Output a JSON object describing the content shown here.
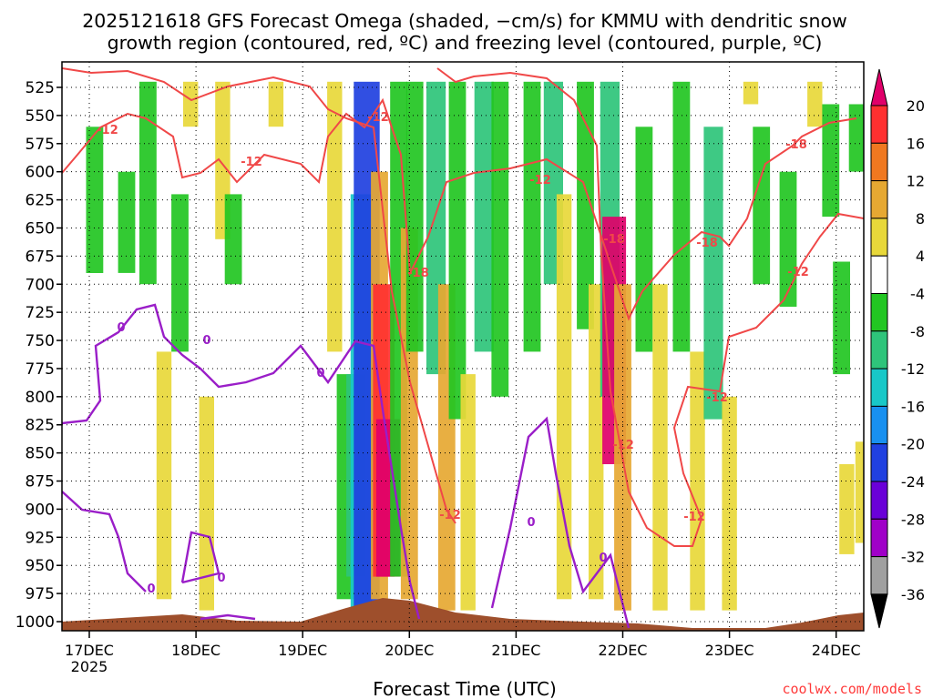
{
  "chart_data": {
    "type": "heatmap",
    "title_line1": "2025121618 GFS Forecast Omega (shaded, −cm/s) for KMMU with dendritic snow",
    "title_line2": "growth region (contoured, red, ºC) and freezing level (contoured, purple, ºC)",
    "xlabel": "Forecast Time (UTC)",
    "credit": "coolwx.com/models",
    "year_label": "2025",
    "x_ticks": [
      "17DEC",
      "18DEC",
      "19DEC",
      "20DEC",
      "21DEC",
      "22DEC",
      "23DEC",
      "24DEC"
    ],
    "y_ticks": [
      525,
      550,
      575,
      600,
      625,
      650,
      675,
      700,
      725,
      750,
      775,
      800,
      825,
      850,
      875,
      900,
      925,
      950,
      975,
      1000
    ],
    "colorbar": {
      "labels": [
        20,
        16,
        12,
        8,
        4,
        -4,
        -8,
        -12,
        -16,
        -20,
        -24,
        -28,
        -32,
        -36
      ],
      "colors": [
        "#e0006a",
        "#ff3030",
        "#f07820",
        "#e6a832",
        "#e8d83a",
        "#ffffff",
        "#22c622",
        "#2ec47a",
        "#18c8c8",
        "#1890f0",
        "#2040e0",
        "#6a00d8",
        "#a000c8",
        "#a0a0a0",
        "#000000"
      ]
    },
    "omega_patches": [
      {
        "t": 0.05,
        "p": [
          560,
          690
        ],
        "v": -8
      },
      {
        "t": 0.35,
        "p": [
          600,
          690
        ],
        "v": -8
      },
      {
        "t": 0.55,
        "p": [
          520,
          700
        ],
        "v": -8
      },
      {
        "t": 0.85,
        "p": [
          620,
          760
        ],
        "v": -8
      },
      {
        "t": 0.95,
        "p": [
          520,
          560
        ],
        "v": 4
      },
      {
        "t": 0.7,
        "p": [
          760,
          980
        ],
        "v": 4
      },
      {
        "t": 1.25,
        "p": [
          520,
          660
        ],
        "v": 4
      },
      {
        "t": 1.35,
        "p": [
          620,
          700
        ],
        "v": -8
      },
      {
        "t": 1.75,
        "p": [
          520,
          560
        ],
        "v": 4
      },
      {
        "t": 1.1,
        "p": [
          800,
          990
        ],
        "v": 4
      },
      {
        "t": 2.3,
        "p": [
          520,
          760
        ],
        "v": 4
      },
      {
        "t": 2.4,
        "p": [
          780,
          980
        ],
        "v": -8
      },
      {
        "t": 2.5,
        "p": [
          780,
          960
        ],
        "v": -12
      },
      {
        "t": 2.55,
        "p": [
          620,
          990
        ],
        "v": -16
      },
      {
        "t": 2.6,
        "p": [
          520,
          990
        ],
        "v": -24
      },
      {
        "t": 2.72,
        "p": [
          600,
          980
        ],
        "v": 8
      },
      {
        "t": 2.76,
        "p": [
          700,
          960
        ],
        "v": 16
      },
      {
        "t": 2.8,
        "p": [
          820,
          960
        ],
        "v": 20
      },
      {
        "t": 2.9,
        "p": [
          520,
          960
        ],
        "v": -8
      },
      {
        "t": 3.0,
        "p": [
          650,
          980
        ],
        "v": 8
      },
      {
        "t": 3.05,
        "p": [
          520,
          760
        ],
        "v": -8
      },
      {
        "t": 3.25,
        "p": [
          520,
          780
        ],
        "v": -12
      },
      {
        "t": 3.35,
        "p": [
          700,
          990
        ],
        "v": 8
      },
      {
        "t": 3.45,
        "p": [
          520,
          820
        ],
        "v": -8
      },
      {
        "t": 3.55,
        "p": [
          780,
          990
        ],
        "v": 4
      },
      {
        "t": 3.7,
        "p": [
          520,
          760
        ],
        "v": -12
      },
      {
        "t": 3.85,
        "p": [
          520,
          800
        ],
        "v": -8
      },
      {
        "t": 4.15,
        "p": [
          520,
          760
        ],
        "v": -8
      },
      {
        "t": 4.35,
        "p": [
          520,
          700
        ],
        "v": -12
      },
      {
        "t": 4.45,
        "p": [
          620,
          980
        ],
        "v": 4
      },
      {
        "t": 4.65,
        "p": [
          520,
          740
        ],
        "v": -8
      },
      {
        "t": 4.75,
        "p": [
          700,
          980
        ],
        "v": 4
      },
      {
        "t": 4.88,
        "p": [
          520,
          800
        ],
        "v": -12
      },
      {
        "t": 4.92,
        "p": [
          640,
          860
        ],
        "v": 20
      },
      {
        "t": 5.0,
        "p": [
          700,
          990
        ],
        "v": 8
      },
      {
        "t": 5.2,
        "p": [
          560,
          760
        ],
        "v": -8
      },
      {
        "t": 5.35,
        "p": [
          700,
          990
        ],
        "v": 4
      },
      {
        "t": 5.55,
        "p": [
          520,
          760
        ],
        "v": -8
      },
      {
        "t": 5.7,
        "p": [
          760,
          990
        ],
        "v": 4
      },
      {
        "t": 5.85,
        "p": [
          560,
          820
        ],
        "v": -12
      },
      {
        "t": 6.0,
        "p": [
          800,
          990
        ],
        "v": 4
      },
      {
        "t": 6.2,
        "p": [
          520,
          540
        ],
        "v": 4
      },
      {
        "t": 6.3,
        "p": [
          560,
          700
        ],
        "v": -8
      },
      {
        "t": 6.55,
        "p": [
          600,
          720
        ],
        "v": -8
      },
      {
        "t": 6.8,
        "p": [
          520,
          560
        ],
        "v": 4
      },
      {
        "t": 6.95,
        "p": [
          540,
          640
        ],
        "v": -8
      },
      {
        "t": 7.05,
        "p": [
          680,
          780
        ],
        "v": -8
      },
      {
        "t": 7.2,
        "p": [
          540,
          600
        ],
        "v": -8
      },
      {
        "t": 7.1,
        "p": [
          860,
          940
        ],
        "v": 4
      },
      {
        "t": 7.25,
        "p": [
          840,
          930
        ],
        "v": 4
      }
    ],
    "freezing_level_label": "0",
    "dgz_labels": [
      "-12",
      "-18"
    ]
  }
}
